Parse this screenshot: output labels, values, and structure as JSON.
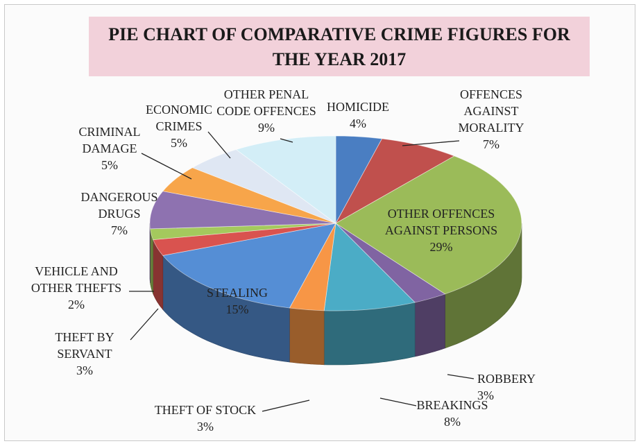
{
  "chart_data": {
    "type": "pie",
    "title": "PIE CHART OF COMPARATIVE CRIME FIGURES FOR THE YEAR 2017",
    "slices": [
      {
        "label": "HOMICIDE",
        "value": 4,
        "display": "4%",
        "color": "#4a7ec2"
      },
      {
        "label": "OFFENCES AGAINST MORALITY",
        "value": 7,
        "display": "7%",
        "color": "#c0504d"
      },
      {
        "label": "OTHER OFFENCES AGAINST PERSONS",
        "value": 29,
        "display": "29%",
        "color": "#9bbb59"
      },
      {
        "label": "ROBBERY",
        "value": 3,
        "display": "3%",
        "color": "#8064a2"
      },
      {
        "label": "BREAKINGS",
        "value": 8,
        "display": "8%",
        "color": "#4bacc6"
      },
      {
        "label": "THEFT OF STOCK",
        "value": 3,
        "display": "3%",
        "color": "#f79646"
      },
      {
        "label": "STEALING",
        "value": 15,
        "display": "15%",
        "color": "#558ed5"
      },
      {
        "label": "THEFT BY SERVANT",
        "value": 3,
        "display": "3%",
        "color": "#d9534f"
      },
      {
        "label": "VEHICLE AND OTHER THEFTS",
        "value": 2,
        "display": "2%",
        "color": "#a4c95d"
      },
      {
        "label": "DANGEROUS DRUGS",
        "value": 7,
        "display": "7%",
        "color": "#8e72b0"
      },
      {
        "label": "CRIMINAL DAMAGE",
        "value": 5,
        "display": "5%",
        "color": "#f7a54a"
      },
      {
        "label": "ECONOMIC CRIMES",
        "value": 5,
        "display": "5%",
        "color": "#dfe7f3"
      },
      {
        "label": "OTHER PENAL CODE OFFENCES",
        "value": 9,
        "display": "9%",
        "color": "#d3eef7"
      }
    ],
    "label_lines": [
      [
        "HOMICIDE",
        "4%"
      ],
      [
        "OFFENCES",
        "AGAINST",
        "MORALITY",
        "7%"
      ],
      [
        "OTHER OFFENCES",
        "AGAINST PERSONS",
        "29%"
      ],
      [
        "ROBBERY",
        "3%"
      ],
      [
        "BREAKINGS",
        "8%"
      ],
      [
        "THEFT OF STOCK",
        "3%"
      ],
      [
        "STEALING",
        "15%"
      ],
      [
        "THEFT BY",
        "SERVANT",
        "3%"
      ],
      [
        "VEHICLE AND",
        "OTHER THEFTS",
        "2%"
      ],
      [
        "DANGEROUS",
        "DRUGS",
        "7%"
      ],
      [
        "CRIMINAL",
        "DAMAGE",
        "5%"
      ],
      [
        "ECONOMIC",
        "CRIMES",
        "5%"
      ],
      [
        "OTHER PENAL",
        "CODE OFFENCES",
        "9%"
      ]
    ],
    "legend": "none",
    "style": "3d-pie"
  }
}
